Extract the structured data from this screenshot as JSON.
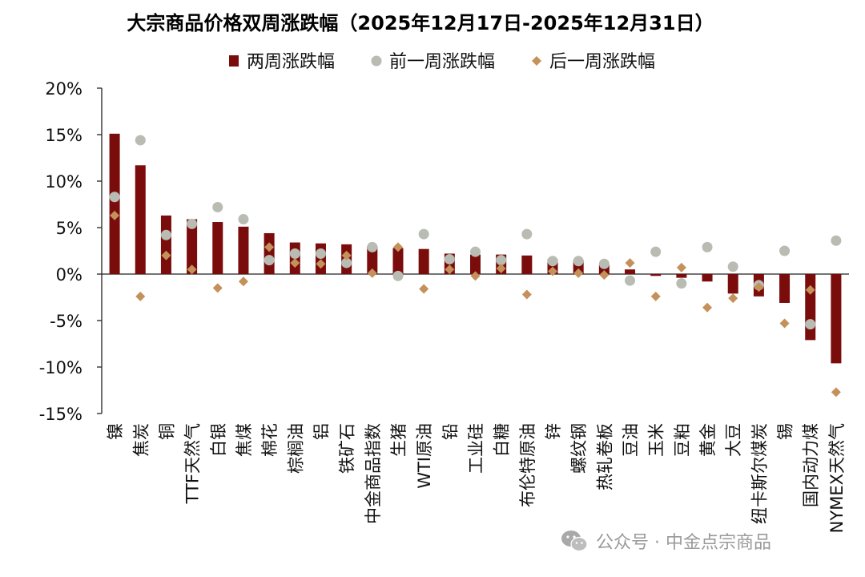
{
  "colors": {
    "bar": "#7a0c0c",
    "prev_marker": "#b8bcb3",
    "next_marker": "#c4915a",
    "axis": "#222222",
    "text": "#111111",
    "watermark": "#9a9a9a"
  },
  "watermark": {
    "icon": "wechat-icon",
    "text": "公众号 · 中金点宗商品"
  },
  "chart_data": {
    "type": "bar",
    "title": "大宗商品价格双周涨跌幅（2025年12月17日-2025年12月31日）",
    "legend_position": "top-center",
    "ylim": [
      -15,
      20
    ],
    "yticks": [
      -15,
      -10,
      -5,
      0,
      5,
      10,
      15,
      20
    ],
    "ytick_labels": [
      "-15%",
      "-10%",
      "-5%",
      "0%",
      "5%",
      "10%",
      "15%",
      "20%"
    ],
    "grid": false,
    "categories": [
      "镍",
      "焦炭",
      "铜",
      "TTF天然气",
      "白银",
      "焦煤",
      "棉花",
      "棕榈油",
      "铝",
      "铁矿石",
      "中金商品指数",
      "生猪",
      "WTI原油",
      "铅",
      "工业硅",
      "白糖",
      "布伦特原油",
      "锌",
      "螺纹钢",
      "热轧卷板",
      "豆油",
      "玉米",
      "豆粕",
      "黄金",
      "大豆",
      "纽卡斯尔煤炭",
      "锡",
      "国内动力煤",
      "NYMEX天然气"
    ],
    "series": [
      {
        "name": "两周涨跌幅",
        "kind": "bar",
        "values": [
          15.1,
          11.7,
          6.3,
          5.9,
          5.6,
          5.1,
          4.4,
          3.4,
          3.3,
          3.2,
          3.0,
          2.8,
          2.7,
          2.2,
          2.1,
          2.1,
          2.0,
          1.6,
          1.5,
          1.0,
          0.5,
          -0.2,
          -0.4,
          -0.8,
          -2.1,
          -2.4,
          -3.1,
          -7.1,
          -9.6
        ]
      },
      {
        "name": "前一周涨跌幅",
        "kind": "circle",
        "values": [
          8.3,
          14.4,
          4.2,
          5.4,
          7.2,
          5.9,
          1.5,
          2.2,
          2.2,
          1.2,
          2.9,
          -0.2,
          4.3,
          1.6,
          2.4,
          1.5,
          4.3,
          1.4,
          1.4,
          1.1,
          -0.7,
          2.4,
          -1.0,
          2.9,
          0.8,
          -1.2,
          2.5,
          -5.4,
          3.6
        ]
      },
      {
        "name": "后一周涨跌幅",
        "kind": "diamond",
        "values": [
          6.3,
          -2.4,
          2.0,
          0.5,
          -1.5,
          -0.8,
          2.9,
          1.2,
          1.1,
          2.0,
          0.1,
          2.9,
          -1.6,
          0.5,
          -0.2,
          0.6,
          -2.2,
          0.3,
          0.1,
          -0.1,
          1.2,
          -2.4,
          0.7,
          -3.6,
          -2.6,
          -1.4,
          -5.3,
          -1.7,
          -12.7
        ]
      }
    ]
  }
}
